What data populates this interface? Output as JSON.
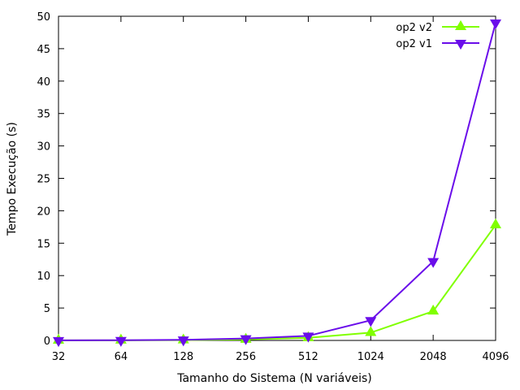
{
  "chart_data": {
    "type": "line",
    "title": "",
    "xlabel": "Tamanho do Sistema (N variáveis)",
    "ylabel": "Tempo Execução (s)",
    "categories": [
      "32",
      "64",
      "128",
      "256",
      "512",
      "1024",
      "2048",
      "4096"
    ],
    "ylim": [
      0,
      50
    ],
    "yticks": [
      0,
      5,
      10,
      15,
      20,
      25,
      30,
      35,
      40,
      45,
      50
    ],
    "grid": false,
    "legend_position": "top-right",
    "series": [
      {
        "name": "op2 v2",
        "marker": "triangle-up",
        "color": "#80ff00",
        "values": [
          0.01,
          0.02,
          0.05,
          0.15,
          0.4,
          1.2,
          4.5,
          17.8
        ]
      },
      {
        "name": "op2 v1",
        "marker": "triangle-down",
        "color": "#6a0dea",
        "values": [
          0.01,
          0.03,
          0.1,
          0.3,
          0.7,
          3.1,
          12.2,
          49.0
        ]
      }
    ]
  }
}
